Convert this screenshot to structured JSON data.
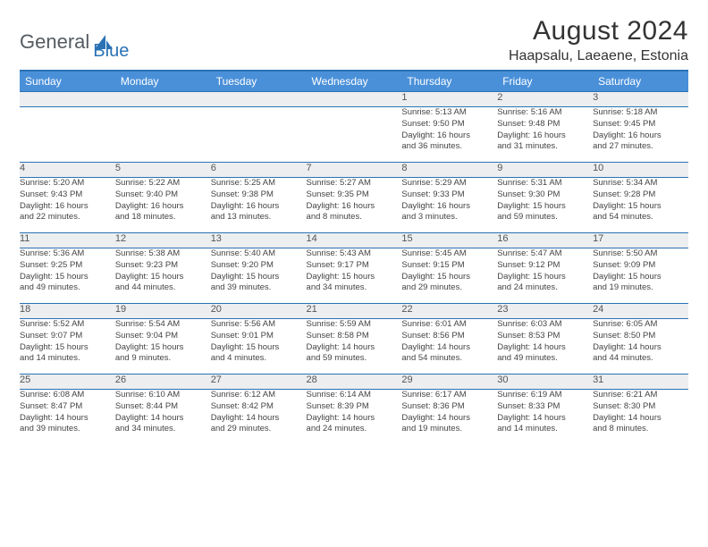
{
  "logo": {
    "part1": "General",
    "part2": "Blue"
  },
  "title": "August 2024",
  "location": "Haapsalu, Laeaene, Estonia",
  "colors": {
    "header_bg": "#4a90d9",
    "accent": "#2a72b5",
    "daynum_bg": "#eceeef",
    "text": "#333333",
    "logo_gray": "#555b60"
  },
  "day_headers": [
    "Sunday",
    "Monday",
    "Tuesday",
    "Wednesday",
    "Thursday",
    "Friday",
    "Saturday"
  ],
  "weeks": [
    {
      "nums": [
        "",
        "",
        "",
        "",
        "1",
        "2",
        "3"
      ],
      "cells": [
        null,
        null,
        null,
        null,
        {
          "sunrise": "Sunrise: 5:13 AM",
          "sunset": "Sunset: 9:50 PM",
          "day1": "Daylight: 16 hours",
          "day2": "and 36 minutes."
        },
        {
          "sunrise": "Sunrise: 5:16 AM",
          "sunset": "Sunset: 9:48 PM",
          "day1": "Daylight: 16 hours",
          "day2": "and 31 minutes."
        },
        {
          "sunrise": "Sunrise: 5:18 AM",
          "sunset": "Sunset: 9:45 PM",
          "day1": "Daylight: 16 hours",
          "day2": "and 27 minutes."
        }
      ]
    },
    {
      "nums": [
        "4",
        "5",
        "6",
        "7",
        "8",
        "9",
        "10"
      ],
      "cells": [
        {
          "sunrise": "Sunrise: 5:20 AM",
          "sunset": "Sunset: 9:43 PM",
          "day1": "Daylight: 16 hours",
          "day2": "and 22 minutes."
        },
        {
          "sunrise": "Sunrise: 5:22 AM",
          "sunset": "Sunset: 9:40 PM",
          "day1": "Daylight: 16 hours",
          "day2": "and 18 minutes."
        },
        {
          "sunrise": "Sunrise: 5:25 AM",
          "sunset": "Sunset: 9:38 PM",
          "day1": "Daylight: 16 hours",
          "day2": "and 13 minutes."
        },
        {
          "sunrise": "Sunrise: 5:27 AM",
          "sunset": "Sunset: 9:35 PM",
          "day1": "Daylight: 16 hours",
          "day2": "and 8 minutes."
        },
        {
          "sunrise": "Sunrise: 5:29 AM",
          "sunset": "Sunset: 9:33 PM",
          "day1": "Daylight: 16 hours",
          "day2": "and 3 minutes."
        },
        {
          "sunrise": "Sunrise: 5:31 AM",
          "sunset": "Sunset: 9:30 PM",
          "day1": "Daylight: 15 hours",
          "day2": "and 59 minutes."
        },
        {
          "sunrise": "Sunrise: 5:34 AM",
          "sunset": "Sunset: 9:28 PM",
          "day1": "Daylight: 15 hours",
          "day2": "and 54 minutes."
        }
      ]
    },
    {
      "nums": [
        "11",
        "12",
        "13",
        "14",
        "15",
        "16",
        "17"
      ],
      "cells": [
        {
          "sunrise": "Sunrise: 5:36 AM",
          "sunset": "Sunset: 9:25 PM",
          "day1": "Daylight: 15 hours",
          "day2": "and 49 minutes."
        },
        {
          "sunrise": "Sunrise: 5:38 AM",
          "sunset": "Sunset: 9:23 PM",
          "day1": "Daylight: 15 hours",
          "day2": "and 44 minutes."
        },
        {
          "sunrise": "Sunrise: 5:40 AM",
          "sunset": "Sunset: 9:20 PM",
          "day1": "Daylight: 15 hours",
          "day2": "and 39 minutes."
        },
        {
          "sunrise": "Sunrise: 5:43 AM",
          "sunset": "Sunset: 9:17 PM",
          "day1": "Daylight: 15 hours",
          "day2": "and 34 minutes."
        },
        {
          "sunrise": "Sunrise: 5:45 AM",
          "sunset": "Sunset: 9:15 PM",
          "day1": "Daylight: 15 hours",
          "day2": "and 29 minutes."
        },
        {
          "sunrise": "Sunrise: 5:47 AM",
          "sunset": "Sunset: 9:12 PM",
          "day1": "Daylight: 15 hours",
          "day2": "and 24 minutes."
        },
        {
          "sunrise": "Sunrise: 5:50 AM",
          "sunset": "Sunset: 9:09 PM",
          "day1": "Daylight: 15 hours",
          "day2": "and 19 minutes."
        }
      ]
    },
    {
      "nums": [
        "18",
        "19",
        "20",
        "21",
        "22",
        "23",
        "24"
      ],
      "cells": [
        {
          "sunrise": "Sunrise: 5:52 AM",
          "sunset": "Sunset: 9:07 PM",
          "day1": "Daylight: 15 hours",
          "day2": "and 14 minutes."
        },
        {
          "sunrise": "Sunrise: 5:54 AM",
          "sunset": "Sunset: 9:04 PM",
          "day1": "Daylight: 15 hours",
          "day2": "and 9 minutes."
        },
        {
          "sunrise": "Sunrise: 5:56 AM",
          "sunset": "Sunset: 9:01 PM",
          "day1": "Daylight: 15 hours",
          "day2": "and 4 minutes."
        },
        {
          "sunrise": "Sunrise: 5:59 AM",
          "sunset": "Sunset: 8:58 PM",
          "day1": "Daylight: 14 hours",
          "day2": "and 59 minutes."
        },
        {
          "sunrise": "Sunrise: 6:01 AM",
          "sunset": "Sunset: 8:56 PM",
          "day1": "Daylight: 14 hours",
          "day2": "and 54 minutes."
        },
        {
          "sunrise": "Sunrise: 6:03 AM",
          "sunset": "Sunset: 8:53 PM",
          "day1": "Daylight: 14 hours",
          "day2": "and 49 minutes."
        },
        {
          "sunrise": "Sunrise: 6:05 AM",
          "sunset": "Sunset: 8:50 PM",
          "day1": "Daylight: 14 hours",
          "day2": "and 44 minutes."
        }
      ]
    },
    {
      "nums": [
        "25",
        "26",
        "27",
        "28",
        "29",
        "30",
        "31"
      ],
      "cells": [
        {
          "sunrise": "Sunrise: 6:08 AM",
          "sunset": "Sunset: 8:47 PM",
          "day1": "Daylight: 14 hours",
          "day2": "and 39 minutes."
        },
        {
          "sunrise": "Sunrise: 6:10 AM",
          "sunset": "Sunset: 8:44 PM",
          "day1": "Daylight: 14 hours",
          "day2": "and 34 minutes."
        },
        {
          "sunrise": "Sunrise: 6:12 AM",
          "sunset": "Sunset: 8:42 PM",
          "day1": "Daylight: 14 hours",
          "day2": "and 29 minutes."
        },
        {
          "sunrise": "Sunrise: 6:14 AM",
          "sunset": "Sunset: 8:39 PM",
          "day1": "Daylight: 14 hours",
          "day2": "and 24 minutes."
        },
        {
          "sunrise": "Sunrise: 6:17 AM",
          "sunset": "Sunset: 8:36 PM",
          "day1": "Daylight: 14 hours",
          "day2": "and 19 minutes."
        },
        {
          "sunrise": "Sunrise: 6:19 AM",
          "sunset": "Sunset: 8:33 PM",
          "day1": "Daylight: 14 hours",
          "day2": "and 14 minutes."
        },
        {
          "sunrise": "Sunrise: 6:21 AM",
          "sunset": "Sunset: 8:30 PM",
          "day1": "Daylight: 14 hours",
          "day2": "and 8 minutes."
        }
      ]
    }
  ]
}
